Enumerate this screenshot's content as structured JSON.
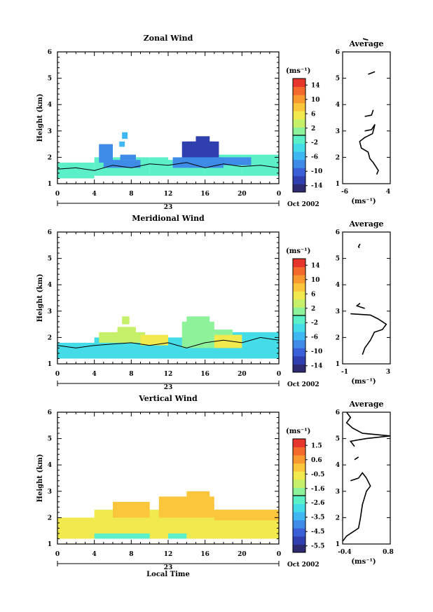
{
  "colors": {
    "scale": [
      "#2e2a72",
      "#2f3fae",
      "#3a5fd6",
      "#3f8be8",
      "#3fb7f2",
      "#44dce6",
      "#5bf0c8",
      "#8ef29a",
      "#c6f06a",
      "#f0ea4e",
      "#fbc63c",
      "#f99a30",
      "#f46a2c",
      "#e6362c"
    ],
    "contour": "#000000",
    "axis": "#000000"
  },
  "shared": {
    "time_ticks": [
      "0",
      "4",
      "8",
      "12",
      "16",
      "20",
      "0"
    ],
    "time_range": [
      0,
      24
    ],
    "date_label": "23",
    "month_label": "Oct 2002",
    "xlabel": "Local Time",
    "ylabel": "Height (km)",
    "height_ticks": [
      "1",
      "2",
      "3",
      "4",
      "5",
      "6"
    ],
    "height_range": [
      1,
      6
    ],
    "avg_title": "Average",
    "avg_unit": "(ms⁻¹)",
    "colorbar_unit": "(ms⁻¹)"
  },
  "chart_data": [
    {
      "type": "heatmap",
      "title": "Zonal Wind",
      "colorbar_ticks": [
        "14",
        "10",
        "6",
        "2",
        "-2",
        "-6",
        "-10",
        "-14"
      ],
      "colorbar_range": [
        -16,
        16
      ],
      "average_profile": {
        "xticks": [
          "-6",
          "4"
        ],
        "xlim": [
          -8,
          6
        ],
        "segments": [
          [
            [
              -2,
              6.5
            ],
            [
              -0.5,
              6.45
            ]
          ],
          [
            [
              -0.5,
              5.15
            ],
            [
              1.5,
              5.25
            ]
          ],
          [
            [
              -1.5,
              3.55
            ],
            [
              0.5,
              3.6
            ],
            [
              1,
              3.8
            ]
          ],
          [
            [
              -1.5,
              3.0
            ],
            [
              0.5,
              3.05
            ],
            [
              1.5,
              3.25
            ],
            [
              0.8,
              2.9
            ],
            [
              -1.5,
              2.75
            ],
            [
              -3,
              2.6
            ],
            [
              -2.5,
              2.35
            ],
            [
              -0.5,
              2.2
            ],
            [
              0,
              1.95
            ],
            [
              1,
              1.8
            ],
            [
              2.5,
              1.5
            ],
            [
              2,
              1.35
            ]
          ]
        ]
      },
      "regions": [
        {
          "cells": [
            [
              0,
              1.2,
              4,
              1.8
            ],
            [
              4,
              1.3,
              10,
              2.0
            ],
            [
              10,
              1.3,
              12,
              2.0
            ],
            [
              12,
              1.3,
              16,
              1.9
            ],
            [
              16,
              1.3,
              20,
              2.1
            ],
            [
              20,
              1.3,
              24,
              2.1
            ]
          ],
          "color_index": 6
        },
        {
          "cells": [
            [
              4.5,
              1.8,
              6,
              2.5
            ],
            [
              6.8,
              1.9,
              8.5,
              2.1
            ],
            [
              5,
              1.6,
              9,
              1.9
            ]
          ],
          "color_index": 3
        },
        {
          "cells": [
            [
              13.5,
              1.8,
              17.5,
              2.6
            ],
            [
              14,
              2.0,
              17,
              2.6
            ],
            [
              15,
              2.3,
              16.5,
              2.8
            ]
          ],
          "color_index": 1
        },
        {
          "cells": [
            [
              12.5,
              1.6,
              18,
              2.0
            ],
            [
              17,
              1.7,
              21,
              2.0
            ]
          ],
          "color_index": 3
        },
        {
          "cells": [
            [
              7,
              2.7,
              7.6,
              2.95
            ],
            [
              6.7,
              2.4,
              7.3,
              2.6
            ]
          ],
          "color_index": 4
        }
      ],
      "contours": [
        [
          [
            0,
            1.55
          ],
          [
            2,
            1.6
          ],
          [
            4,
            1.5
          ],
          [
            6,
            1.7
          ],
          [
            8,
            1.6
          ],
          [
            10,
            1.75
          ],
          [
            12,
            1.7
          ],
          [
            14,
            1.8
          ],
          [
            16,
            1.6
          ],
          [
            18,
            1.75
          ],
          [
            20,
            1.65
          ],
          [
            22,
            1.7
          ],
          [
            24,
            1.6
          ]
        ]
      ]
    },
    {
      "type": "heatmap",
      "title": "Meridional Wind",
      "colorbar_ticks": [
        "14",
        "10",
        "6",
        "2",
        "-2",
        "-6",
        "-10",
        "-14"
      ],
      "colorbar_range": [
        -16,
        16
      ],
      "average_profile": {
        "xticks": [
          "-1",
          "3"
        ],
        "xlim": [
          -2,
          4
        ],
        "segments": [
          [
            [
              0.2,
              5.55
            ],
            [
              0,
              5.45
            ],
            [
              0.1,
              5.4
            ]
          ],
          [
            [
              0.2,
              3.3
            ],
            [
              -0.2,
              3.2
            ],
            [
              0.8,
              3.1
            ]
          ],
          [
            [
              -1,
              2.9
            ],
            [
              1.5,
              2.85
            ],
            [
              2.5,
              2.7
            ],
            [
              3.5,
              2.5
            ],
            [
              3,
              2.3
            ],
            [
              2,
              2.2
            ],
            [
              1.5,
              1.9
            ],
            [
              0.8,
              1.6
            ],
            [
              0.5,
              1.35
            ]
          ]
        ]
      },
      "regions": [
        {
          "cells": [
            [
              0,
              1.2,
              24,
              1.8
            ],
            [
              4,
              1.3,
              14,
              2.0
            ],
            [
              17,
              1.4,
              24,
              2.2
            ]
          ],
          "color_index": 5
        },
        {
          "cells": [
            [
              4.5,
              1.8,
              9.5,
              2.2
            ],
            [
              6.5,
              1.9,
              8.5,
              2.4
            ],
            [
              7,
              2.5,
              7.8,
              2.8
            ]
          ],
          "color_index": 8
        },
        {
          "cells": [
            [
              13.5,
              1.6,
              17,
              2.6
            ],
            [
              14,
              2.2,
              16.5,
              2.8
            ],
            [
              15.5,
              2.0,
              19,
              2.3
            ]
          ],
          "color_index": 7
        },
        {
          "cells": [
            [
              9,
              1.7,
              12,
              2.1
            ],
            [
              17,
              1.6,
              20,
              2.1
            ]
          ],
          "color_index": 9
        }
      ],
      "contours": [
        [
          [
            0,
            1.7
          ],
          [
            2,
            1.6
          ],
          [
            4,
            1.7
          ],
          [
            6,
            1.75
          ],
          [
            8,
            1.8
          ],
          [
            10,
            1.7
          ],
          [
            12,
            1.8
          ],
          [
            14,
            1.6
          ],
          [
            16,
            1.8
          ],
          [
            18,
            1.9
          ],
          [
            20,
            1.8
          ],
          [
            22,
            2.0
          ],
          [
            24,
            1.9
          ]
        ]
      ]
    },
    {
      "type": "heatmap",
      "title": "Vertical Wind",
      "colorbar_ticks": [
        "1.5",
        "0.6",
        "-0.5",
        "-1.6",
        "-2.6",
        "-3.5",
        "-4.5",
        "-5.5"
      ],
      "colorbar_range": [
        -6,
        2
      ],
      "average_profile": {
        "xticks": [
          "-0.4",
          "0.8"
        ],
        "xlim": [
          -0.4,
          0.8
        ],
        "segments": [
          [
            [
              -0.3,
              6.0
            ],
            [
              -0.2,
              5.8
            ],
            [
              -0.3,
              5.6
            ],
            [
              -0.15,
              5.4
            ],
            [
              0.1,
              5.2
            ],
            [
              0.8,
              5.1
            ],
            [
              0.2,
              5.0
            ],
            [
              -0.2,
              4.9
            ],
            [
              -0.1,
              4.7
            ]
          ],
          [
            [
              0.0,
              4.3
            ],
            [
              -0.1,
              4.2
            ]
          ],
          [
            [
              -0.2,
              3.4
            ],
            [
              0.0,
              3.5
            ],
            [
              0.1,
              3.7
            ],
            [
              0.2,
              3.5
            ],
            [
              0.3,
              3.2
            ],
            [
              0.2,
              3.0
            ],
            [
              0.1,
              2.5
            ],
            [
              0.05,
              2.0
            ],
            [
              0.0,
              1.6
            ],
            [
              -0.3,
              1.3
            ],
            [
              -0.4,
              1.1
            ]
          ]
        ]
      },
      "regions": [
        {
          "cells": [
            [
              0,
              1.2,
              24,
              2.0
            ],
            [
              4,
              1.3,
              24,
              2.3
            ]
          ],
          "color_index": 9
        },
        {
          "cells": [
            [
              6,
              2.0,
              10,
              2.6
            ],
            [
              11,
              2.0,
              17,
              2.8
            ],
            [
              14,
              2.2,
              16.5,
              3.0
            ],
            [
              17,
              1.9,
              24,
              2.3
            ]
          ],
          "color_index": 10
        },
        {
          "cells": [
            [
              4,
              1.2,
              10,
              1.4
            ],
            [
              12,
              1.2,
              14,
              1.4
            ]
          ],
          "color_index": 6
        }
      ],
      "contours": []
    }
  ]
}
